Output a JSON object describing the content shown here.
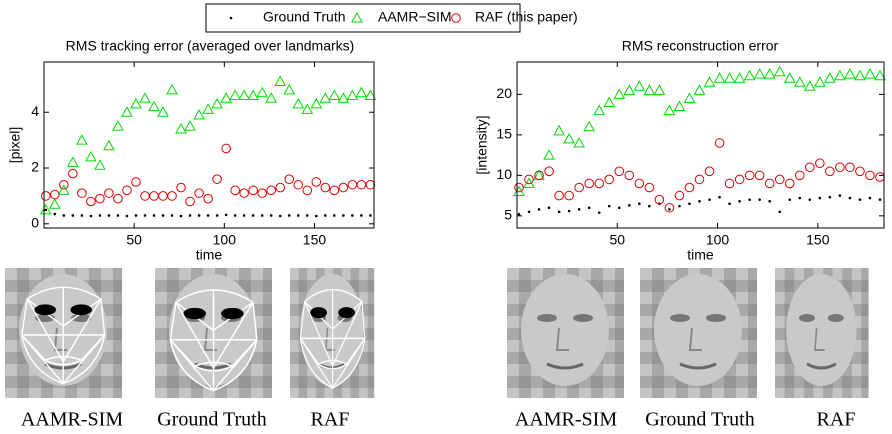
{
  "chart_data": [
    {
      "type": "scatter",
      "title": "RMS tracking error (averaged over landmarks)",
      "xlabel": "time",
      "ylabel": "[pixel]",
      "xlim": [
        0,
        183
      ],
      "ylim": [
        -0.15,
        5.8
      ],
      "xticks": [
        50,
        100,
        150
      ],
      "yticks": [
        0,
        2,
        4
      ],
      "grid": false,
      "x": [
        1,
        6,
        11,
        16,
        21,
        26,
        31,
        36,
        41,
        46,
        51,
        56,
        61,
        66,
        71,
        76,
        81,
        86,
        91,
        96,
        101,
        106,
        111,
        116,
        121,
        126,
        131,
        136,
        141,
        146,
        151,
        156,
        161,
        166,
        171,
        176,
        181
      ],
      "series": [
        {
          "name": "Ground Truth",
          "color": "#000000",
          "marker": "dot",
          "values": [
            0.5,
            0.35,
            0.3,
            0.3,
            0.3,
            0.28,
            0.3,
            0.3,
            0.3,
            0.28,
            0.3,
            0.3,
            0.3,
            0.3,
            0.3,
            0.28,
            0.3,
            0.3,
            0.3,
            0.3,
            0.32,
            0.3,
            0.3,
            0.3,
            0.3,
            0.3,
            0.28,
            0.3,
            0.3,
            0.3,
            0.28,
            0.3,
            0.3,
            0.3,
            0.3,
            0.3,
            0.3
          ]
        },
        {
          "name": "AAMR−SIM",
          "color": "#00dd00",
          "marker": "triangle",
          "values": [
            0.5,
            0.7,
            1.2,
            2.2,
            3.0,
            2.4,
            2.1,
            2.8,
            3.5,
            4.0,
            4.3,
            4.5,
            4.2,
            4.0,
            4.8,
            3.4,
            3.5,
            3.9,
            4.1,
            4.3,
            4.5,
            4.6,
            4.6,
            4.6,
            4.7,
            4.5,
            5.1,
            4.8,
            4.3,
            4.1,
            4.3,
            4.5,
            4.6,
            4.5,
            4.6,
            4.7,
            4.6
          ]
        },
        {
          "name": "RAF (this paper)",
          "color": "#dd0000",
          "marker": "circle",
          "values": [
            1.0,
            1.05,
            1.4,
            1.8,
            1.1,
            0.8,
            0.9,
            1.1,
            0.9,
            1.2,
            1.5,
            1.0,
            1.0,
            1.0,
            1.0,
            1.3,
            0.8,
            1.1,
            0.9,
            1.6,
            2.7,
            1.2,
            1.1,
            1.2,
            1.1,
            1.2,
            1.3,
            1.6,
            1.4,
            1.2,
            1.5,
            1.3,
            1.2,
            1.3,
            1.4,
            1.4,
            1.4
          ]
        }
      ]
    },
    {
      "type": "scatter",
      "title": "RMS reconstruction error",
      "xlabel": "time",
      "ylabel": "[intensity]",
      "xlim": [
        0,
        183
      ],
      "ylim": [
        3.5,
        24
      ],
      "xticks": [
        50,
        100,
        150
      ],
      "yticks": [
        5,
        10,
        15,
        20
      ],
      "grid": false,
      "x": [
        1,
        6,
        11,
        16,
        21,
        26,
        31,
        36,
        41,
        46,
        51,
        56,
        61,
        66,
        71,
        76,
        81,
        86,
        91,
        96,
        101,
        106,
        111,
        116,
        121,
        126,
        131,
        136,
        141,
        146,
        151,
        156,
        161,
        166,
        171,
        176,
        181
      ],
      "series": [
        {
          "color": "#000000",
          "marker": "dot",
          "values": [
            5.2,
            5.5,
            5.8,
            6.0,
            5.5,
            5.6,
            5.8,
            6.0,
            5.4,
            6.2,
            6.0,
            6.3,
            6.5,
            6.2,
            6.5,
            5.8,
            6.2,
            6.5,
            6.8,
            7.0,
            7.3,
            6.5,
            6.8,
            7.0,
            7.0,
            6.8,
            5.5,
            7.0,
            7.2,
            7.0,
            7.2,
            7.3,
            7.5,
            7.2,
            7.0,
            7.2,
            7.0
          ]
        },
        {
          "color": "#00dd00",
          "marker": "triangle",
          "values": [
            8.0,
            9.0,
            10.0,
            12.5,
            15.5,
            14.5,
            14.0,
            16.0,
            18.0,
            19.0,
            20.0,
            20.5,
            21.0,
            20.5,
            20.5,
            18.0,
            18.5,
            19.5,
            20.5,
            21.5,
            22.0,
            22.0,
            22.0,
            22.3,
            22.5,
            22.5,
            22.8,
            22.0,
            21.5,
            21.0,
            21.5,
            22.0,
            22.3,
            22.5,
            22.3,
            22.5,
            22.3
          ]
        },
        {
          "color": "#dd0000",
          "marker": "circle",
          "values": [
            8.5,
            9.5,
            10.0,
            10.5,
            7.5,
            7.5,
            8.5,
            9.0,
            9.0,
            9.5,
            10.5,
            10.0,
            9.0,
            8.5,
            7.0,
            6.0,
            7.5,
            8.5,
            9.5,
            10.5,
            14.0,
            9.0,
            9.5,
            10.0,
            10.0,
            9.0,
            9.5,
            9.0,
            10.0,
            11.0,
            11.5,
            10.5,
            11.0,
            11.0,
            10.5,
            10.0,
            9.8
          ]
        }
      ]
    }
  ],
  "panels": [
    {
      "captions": [
        "AAMR-SIM",
        "Ground Truth",
        "RAF"
      ]
    },
    {
      "captions": [
        "AAMR-SIM",
        "Ground Truth",
        "RAF"
      ]
    }
  ]
}
